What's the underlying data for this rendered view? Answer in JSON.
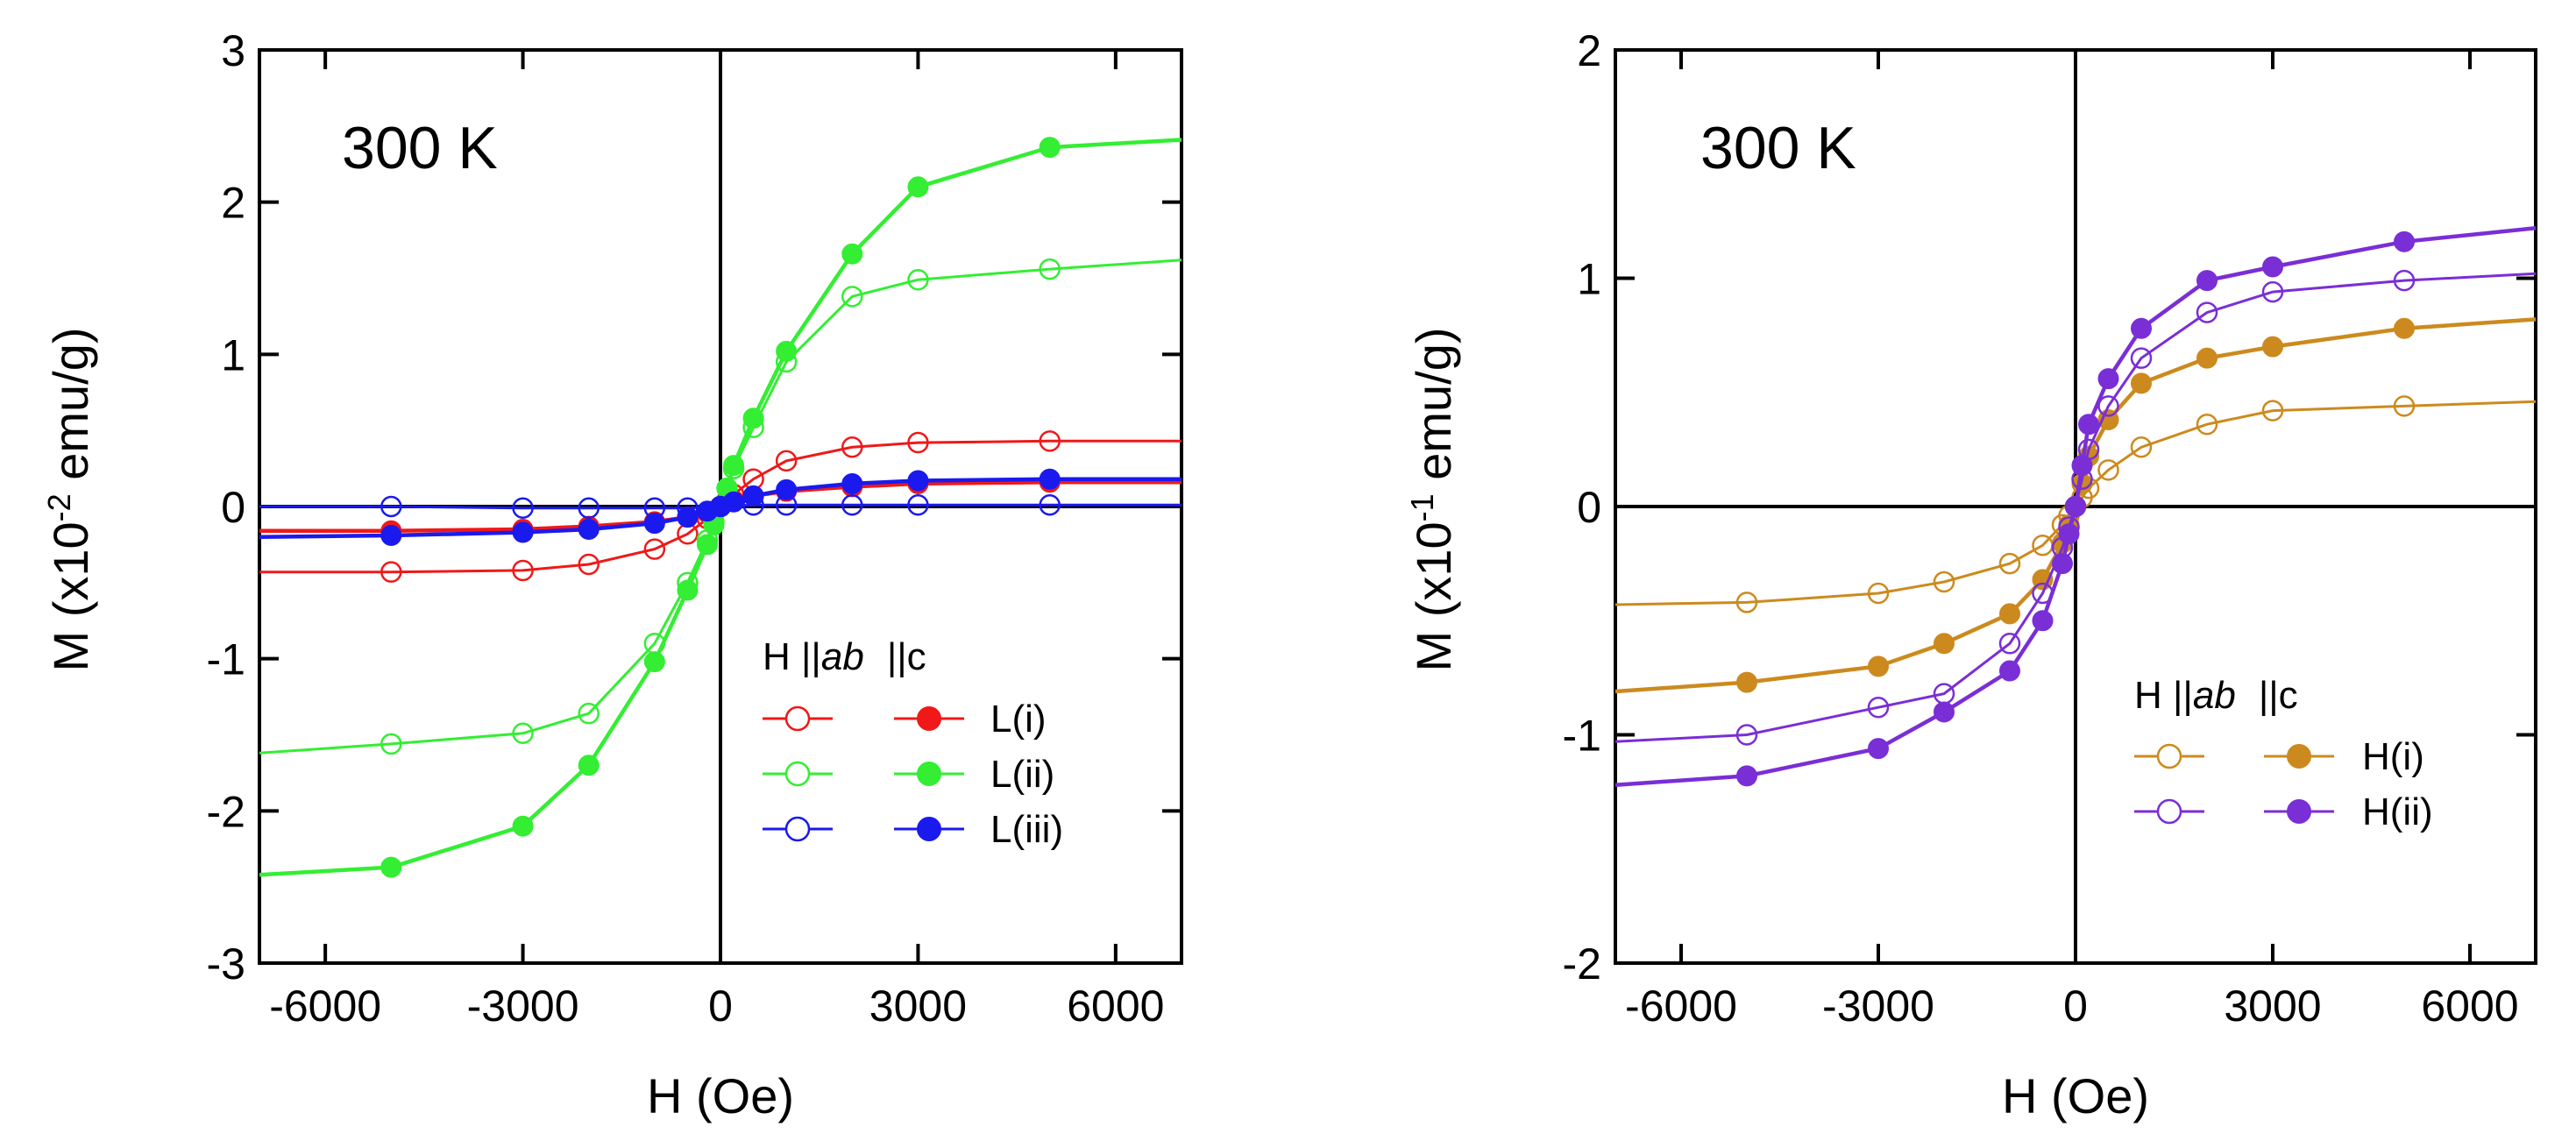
{
  "chart_data": [
    {
      "type": "line",
      "annotation": "300 K",
      "xlabel": "H (Oe)",
      "ylabel_main": "M (x10",
      "ylabel_exp": "-2",
      "ylabel_unit": " emu/g)",
      "xlim": [
        -7000,
        7000
      ],
      "ylim": [
        -3,
        3
      ],
      "xticks": [
        -6000,
        -3000,
        0,
        3000,
        6000
      ],
      "xtick_labels": [
        "-6000",
        "-3000",
        "0",
        "3000",
        "6000"
      ],
      "yticks": [
        -3,
        -2,
        -1,
        0,
        1,
        2,
        3
      ],
      "ytick_labels": [
        "-3",
        "-2",
        "-1",
        "0",
        "1",
        "2",
        "3"
      ],
      "legend": {
        "header_h": "H ||",
        "header_ab": "ab",
        "header_c": "||c",
        "entries": [
          "L(i)",
          "L(ii)",
          "L(iii)"
        ]
      },
      "series": [
        {
          "name": "L(i)",
          "orientation": "ab",
          "color": "#f01818",
          "filled": false,
          "x": [
            -7000,
            -5000,
            -3000,
            -2000,
            -1000,
            -500,
            -200,
            -100,
            0,
            100,
            200,
            500,
            1000,
            2000,
            3000,
            5000,
            7000
          ],
          "y": [
            -0.43,
            -0.43,
            -0.42,
            -0.38,
            -0.28,
            -0.18,
            -0.08,
            -0.04,
            0,
            0.04,
            0.08,
            0.18,
            0.3,
            0.39,
            0.42,
            0.43,
            0.43
          ]
        },
        {
          "name": "L(i)",
          "orientation": "c",
          "color": "#f01818",
          "filled": true,
          "x": [
            -7000,
            -5000,
            -3000,
            -2000,
            -1000,
            -500,
            -200,
            0,
            200,
            500,
            1000,
            2000,
            3000,
            5000,
            7000
          ],
          "y": [
            -0.16,
            -0.16,
            -0.15,
            -0.13,
            -0.1,
            -0.07,
            -0.04,
            0,
            0.04,
            0.07,
            0.1,
            0.13,
            0.15,
            0.16,
            0.16
          ]
        },
        {
          "name": "L(ii)",
          "orientation": "ab",
          "color": "#33ee33",
          "filled": false,
          "x": [
            -7000,
            -5000,
            -3000,
            -2000,
            -1000,
            -500,
            -200,
            -100,
            0,
            100,
            200,
            500,
            1000,
            2000,
            3000,
            5000,
            7000
          ],
          "y": [
            -1.62,
            -1.56,
            -1.49,
            -1.36,
            -0.9,
            -0.5,
            -0.22,
            -0.1,
            0,
            0.12,
            0.25,
            0.52,
            0.95,
            1.38,
            1.49,
            1.56,
            1.62
          ]
        },
        {
          "name": "L(ii)",
          "orientation": "c",
          "color": "#33ee33",
          "filled": true,
          "x": [
            -7000,
            -5000,
            -3000,
            -2000,
            -1000,
            -500,
            -200,
            -100,
            0,
            100,
            200,
            500,
            1000,
            2000,
            3000,
            5000,
            7000
          ],
          "y": [
            -2.42,
            -2.37,
            -2.1,
            -1.7,
            -1.02,
            -0.55,
            -0.25,
            -0.12,
            0,
            0.12,
            0.27,
            0.58,
            1.02,
            1.66,
            2.1,
            2.36,
            2.41
          ]
        },
        {
          "name": "L(iii)",
          "orientation": "ab",
          "color": "#1a1aee",
          "filled": false,
          "x": [
            -7000,
            -5000,
            -3000,
            -2000,
            -1000,
            -500,
            0,
            500,
            1000,
            2000,
            3000,
            5000,
            7000
          ],
          "y": [
            0,
            0,
            -0.01,
            -0.01,
            -0.01,
            -0.01,
            0,
            0.01,
            0.01,
            0.01,
            0.01,
            0.01,
            0.01
          ]
        },
        {
          "name": "L(iii)",
          "orientation": "c",
          "color": "#1a1aee",
          "filled": true,
          "x": [
            -7000,
            -5000,
            -3000,
            -2000,
            -1000,
            -500,
            -200,
            0,
            200,
            500,
            1000,
            2000,
            3000,
            5000,
            7000
          ],
          "y": [
            -0.2,
            -0.19,
            -0.17,
            -0.15,
            -0.11,
            -0.07,
            -0.03,
            0,
            0.03,
            0.07,
            0.11,
            0.15,
            0.17,
            0.18,
            0.18
          ]
        }
      ]
    },
    {
      "type": "line",
      "annotation": "300 K",
      "xlabel": "H (Oe)",
      "ylabel_main": "M (x10",
      "ylabel_exp": "-1",
      "ylabel_unit": " emu/g)",
      "xlim": [
        -7000,
        7000
      ],
      "ylim": [
        -2,
        2
      ],
      "xticks": [
        -6000,
        -3000,
        0,
        3000,
        6000
      ],
      "xtick_labels": [
        "-6000",
        "-3000",
        "0",
        "3000",
        "6000"
      ],
      "yticks": [
        -2,
        -1,
        0,
        1,
        2
      ],
      "ytick_labels": [
        "-2",
        "-1",
        "0",
        "1",
        "2"
      ],
      "legend": {
        "header_h": "H ||",
        "header_ab": "ab",
        "header_c": "||c",
        "entries": [
          "H(i)",
          "H(ii)"
        ]
      },
      "series": [
        {
          "name": "H(i)",
          "orientation": "ab",
          "color": "#cc8a1e",
          "filled": false,
          "x": [
            -7000,
            -5000,
            -3000,
            -2000,
            -1000,
            -500,
            -200,
            -100,
            0,
            100,
            200,
            500,
            1000,
            2000,
            3000,
            5000,
            7000
          ],
          "y": [
            -0.43,
            -0.42,
            -0.38,
            -0.33,
            -0.25,
            -0.17,
            -0.08,
            -0.04,
            0,
            0.04,
            0.08,
            0.16,
            0.26,
            0.36,
            0.42,
            0.44,
            0.46
          ]
        },
        {
          "name": "H(i)",
          "orientation": "c",
          "color": "#cc8a1e",
          "filled": true,
          "x": [
            -7000,
            -5000,
            -3000,
            -2000,
            -1000,
            -500,
            -200,
            -100,
            0,
            100,
            200,
            500,
            1000,
            2000,
            3000,
            5000,
            7000
          ],
          "y": [
            -0.81,
            -0.77,
            -0.7,
            -0.6,
            -0.47,
            -0.32,
            -0.16,
            -0.08,
            0,
            0.1,
            0.22,
            0.38,
            0.54,
            0.65,
            0.7,
            0.78,
            0.82
          ]
        },
        {
          "name": "H(ii)",
          "orientation": "ab",
          "color": "#7a2ed6",
          "filled": false,
          "x": [
            -7000,
            -5000,
            -3000,
            -2000,
            -1000,
            -500,
            -200,
            -100,
            0,
            100,
            200,
            500,
            1000,
            2000,
            3000,
            5000,
            7000
          ],
          "y": [
            -1.03,
            -1.0,
            -0.88,
            -0.82,
            -0.6,
            -0.38,
            -0.18,
            -0.09,
            0,
            0.12,
            0.25,
            0.44,
            0.65,
            0.85,
            0.94,
            0.99,
            1.02
          ]
        },
        {
          "name": "H(ii)",
          "orientation": "c",
          "color": "#7a2ed6",
          "filled": true,
          "x": [
            -7000,
            -5000,
            -3000,
            -2000,
            -1000,
            -500,
            -200,
            -100,
            0,
            100,
            200,
            500,
            1000,
            2000,
            3000,
            5000,
            7000
          ],
          "y": [
            -1.22,
            -1.18,
            -1.06,
            -0.9,
            -0.72,
            -0.5,
            -0.25,
            -0.12,
            0,
            0.18,
            0.36,
            0.56,
            0.78,
            0.99,
            1.05,
            1.16,
            1.22
          ]
        }
      ]
    }
  ]
}
